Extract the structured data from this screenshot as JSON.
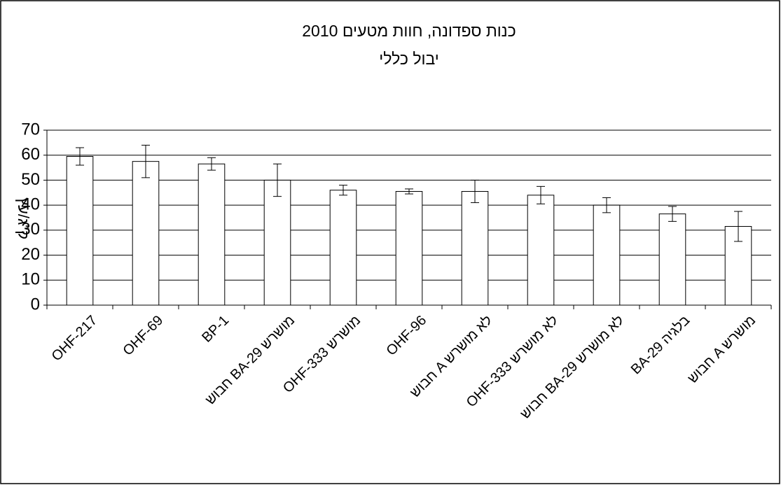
{
  "chart_data": {
    "type": "bar",
    "title": "כנות ספדונה, חוות מטעים 2010",
    "subtitle": "יבול כללי",
    "y_label": "ק\"ג/עץ",
    "categories": [
      "OHF-217",
      "OHF-69",
      "BP-1",
      "חבוש BA-29 מושרש",
      "OHF-333 מושרש",
      "OHF-96",
      "חבוש A לא מושרש",
      "OHF-333 לא מושרש",
      "חבוש BA-29 לא מושרש",
      "BA-29 בלגיה",
      "חבוש A מושרש"
    ],
    "values": [
      59.5,
      57.5,
      56.5,
      50,
      46,
      45.5,
      45.5,
      44,
      40,
      36.5,
      31.5
    ],
    "errors": [
      3.5,
      6.5,
      2.5,
      6.5,
      2,
      1,
      4.5,
      3.5,
      3,
      3,
      6
    ],
    "color": "#ffffff",
    "ylim": [
      0,
      70
    ],
    "yticks": [
      0,
      10,
      20,
      30,
      40,
      50,
      60,
      70
    ],
    "grid": true
  }
}
